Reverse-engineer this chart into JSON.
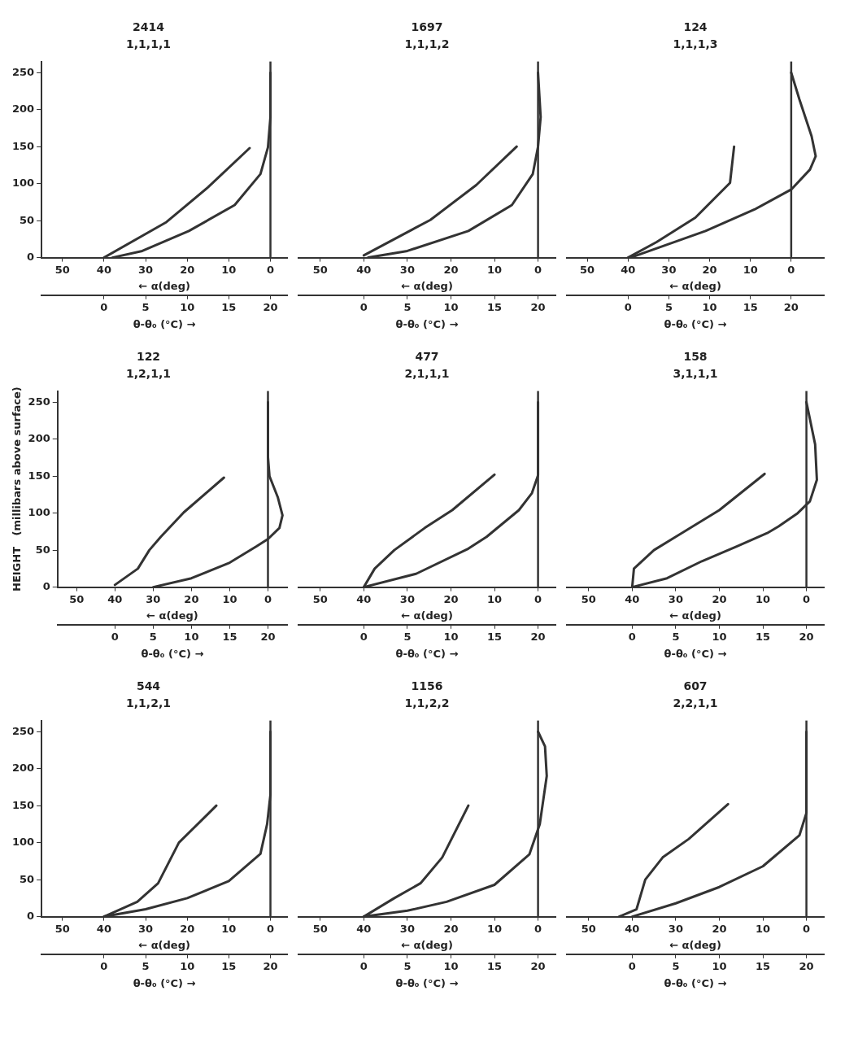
{
  "chart_data": [
    {
      "type": "line",
      "title": "2414",
      "subtitle": "1,1,1,1",
      "xlabel": "← α(deg)",
      "x2label": "θ-θ₀ (°C) →",
      "xlim": [
        55,
        -4
      ],
      "xticks": [
        50,
        40,
        30,
        20,
        10,
        0
      ],
      "x2lim": [
        -7.5,
        22
      ],
      "x2ticks": [
        0,
        5,
        10,
        15,
        20
      ],
      "ylim": [
        0,
        265
      ],
      "yticks": [
        0,
        50,
        100,
        150,
        200,
        250
      ],
      "ref_lines": [
        {
          "axis": "x",
          "value": 0,
          "color": "#333333"
        }
      ],
      "series": [
        {
          "color": "#333333",
          "x": [
            40,
            25,
            15,
            5
          ],
          "values": [
            0,
            48,
            95,
            148
          ]
        },
        {
          "color": "#333333",
          "axis": "x2",
          "x": [
            1,
            4.6,
            10.2,
            15.7,
            18.8,
            19.7,
            20,
            20
          ],
          "values": [
            0,
            9,
            36,
            71,
            113,
            149,
            190,
            250
          ]
        }
      ]
    },
    {
      "type": "line",
      "title": "1697",
      "subtitle": "1,1,1,2",
      "xlabel": "← α(deg)",
      "x2label": "θ-θ₀ (°C) →",
      "xlim": [
        55,
        -4
      ],
      "xticks": [
        50,
        40,
        30,
        20,
        10,
        0
      ],
      "x2lim": [
        -7.5,
        22
      ],
      "x2ticks": [
        0,
        5,
        10,
        15,
        20
      ],
      "ylim": [
        0,
        265
      ],
      "tick_labels": "x",
      "ref_lines": [
        {
          "axis": "x",
          "value": 0,
          "color": "#333333"
        }
      ],
      "series": [
        {
          "color": "#333333",
          "x": [
            40,
            24.7,
            14.2,
            4.9
          ],
          "values": [
            3,
            51,
            98,
            150
          ]
        },
        {
          "color": "#333333",
          "axis": "x2",
          "x": [
            0.5,
            5,
            12,
            17,
            19.4,
            20,
            20.3,
            20
          ],
          "values": [
            0,
            9,
            36,
            71,
            113,
            150,
            190,
            250
          ]
        }
      ]
    },
    {
      "type": "line",
      "title": "124",
      "subtitle": "1,1,1,3",
      "xlabel": "← α(deg)",
      "x2label": "θ-θ₀ (°C) →",
      "xlim": [
        55,
        -8
      ],
      "xticks": [
        50,
        40,
        30,
        20,
        10,
        0
      ],
      "x2lim": [
        -7.5,
        24
      ],
      "x2ticks": [
        0,
        5,
        10,
        15,
        20
      ],
      "ylim": [
        0,
        265
      ],
      "tick_labels": "x",
      "ref_lines": [
        {
          "axis": "x",
          "value": 0,
          "color": "#333333"
        }
      ],
      "series": [
        {
          "color": "#333333",
          "x": [
            40,
            33,
            23.5,
            15,
            14
          ],
          "values": [
            0,
            21,
            54,
            101,
            150
          ]
        },
        {
          "color": "#333333",
          "axis": "x2",
          "x": [
            0.3,
            9.5,
            15.5,
            20,
            22.3,
            23,
            22.5,
            21,
            20
          ],
          "values": [
            0,
            36,
            65,
            92,
            119,
            137,
            164,
            214,
            250
          ]
        }
      ]
    },
    {
      "type": "line",
      "title": "122",
      "subtitle": "1,2,1,1",
      "xlabel": "← α(deg)",
      "x2label": "θ-θ₀ (°C) →",
      "ylabel": "HEIGHT   (millibars above surface)",
      "xlim": [
        55,
        -5
      ],
      "xticks": [
        50,
        40,
        30,
        20,
        10,
        0
      ],
      "x2lim": [
        -7.5,
        22.5
      ],
      "x2ticks": [
        0,
        5,
        10,
        15,
        20
      ],
      "ylim": [
        0,
        265
      ],
      "yticks": [
        0,
        50,
        100,
        150,
        200,
        250
      ],
      "ref_lines": [
        {
          "axis": "x",
          "value": 0,
          "color": "#333333"
        }
      ],
      "series": [
        {
          "color": "#333333",
          "x": [
            40,
            34,
            31,
            28,
            22,
            11.5
          ],
          "values": [
            3,
            25,
            50,
            68,
            101,
            148
          ]
        },
        {
          "color": "#333333",
          "axis": "x2",
          "x": [
            5,
            10,
            15,
            18.5,
            20,
            21.5,
            21.9,
            21.3,
            20.2,
            20,
            20
          ],
          "values": [
            0,
            12,
            33,
            55,
            65,
            80,
            97,
            121,
            150,
            176,
            250
          ]
        }
      ]
    },
    {
      "type": "line",
      "title": "477",
      "subtitle": "2,1,1,1",
      "xlabel": "← α(deg)",
      "x2label": "θ-θ₀ (°C) →",
      "xlim": [
        55,
        -4
      ],
      "xticks": [
        50,
        40,
        30,
        20,
        10,
        0
      ],
      "x2lim": [
        -7.5,
        22
      ],
      "x2ticks": [
        0,
        5,
        10,
        15,
        20
      ],
      "ylim": [
        0,
        265
      ],
      "tick_labels": "x",
      "ref_lines": [
        {
          "axis": "x",
          "value": 0,
          "color": "#333333"
        }
      ],
      "series": [
        {
          "color": "#333333",
          "x": [
            40,
            37.5,
            33,
            26,
            19.7,
            10
          ],
          "values": [
            0,
            25,
            50,
            80,
            104,
            152
          ]
        },
        {
          "color": "#333333",
          "axis": "x2",
          "x": [
            0,
            6,
            12,
            14.1,
            17.8,
            19.3,
            20,
            20
          ],
          "values": [
            0,
            18,
            52,
            68,
            104,
            127,
            151,
            250
          ]
        }
      ]
    },
    {
      "type": "line",
      "title": "158",
      "subtitle": "3,1,1,1",
      "xlabel": "← α(deg)",
      "x2label": "θ-θ₀ (°C) →",
      "xlim": [
        55,
        -4
      ],
      "xticks": [
        50,
        40,
        30,
        20,
        10,
        0
      ],
      "x2lim": [
        -7.5,
        22
      ],
      "x2ticks": [
        0,
        5,
        10,
        15,
        20
      ],
      "ylim": [
        0,
        265
      ],
      "tick_labels": "x",
      "ref_lines": [
        {
          "axis": "x",
          "value": 0,
          "color": "#333333"
        }
      ],
      "series": [
        {
          "color": "#333333",
          "x": [
            40,
            39.6,
            35,
            30,
            20,
            9.6
          ],
          "values": [
            0,
            25,
            50,
            68,
            104,
            153
          ]
        },
        {
          "color": "#333333",
          "axis": "x2",
          "x": [
            0,
            4,
            8,
            12,
            15.5,
            16.8,
            19,
            20.4,
            21.2,
            21,
            20
          ],
          "values": [
            0,
            12,
            35,
            55,
            73,
            82,
            100,
            116,
            145,
            193,
            250
          ]
        }
      ]
    },
    {
      "type": "line",
      "title": "544",
      "subtitle": "1,1,2,1",
      "xlabel": "← α(deg)",
      "x2label": "θ-θ₀ (°C) →",
      "xlim": [
        55,
        -4
      ],
      "xticks": [
        50,
        40,
        30,
        20,
        10,
        0
      ],
      "x2lim": [
        -7.5,
        22
      ],
      "x2ticks": [
        0,
        5,
        10,
        15,
        20
      ],
      "ylim": [
        0,
        265
      ],
      "yticks": [
        0,
        50,
        100,
        150,
        200,
        250
      ],
      "ref_lines": [
        {
          "axis": "x",
          "value": 0,
          "color": "#333333"
        }
      ],
      "series": [
        {
          "color": "#333333",
          "x": [
            40,
            32,
            27,
            22,
            13
          ],
          "values": [
            0,
            20,
            45,
            100,
            150
          ]
        },
        {
          "color": "#333333",
          "axis": "x2",
          "x": [
            0,
            5,
            10,
            15,
            18.8,
            19.6,
            20,
            20
          ],
          "values": [
            0,
            10,
            25,
            48,
            85,
            125,
            165,
            250
          ]
        }
      ]
    },
    {
      "type": "line",
      "title": "1156",
      "subtitle": "1,1,2,2",
      "xlabel": "← α(deg)",
      "x2label": "θ-θ₀ (°C) →",
      "xlim": [
        55,
        -4
      ],
      "xticks": [
        50,
        40,
        30,
        20,
        10,
        0
      ],
      "x2lim": [
        -7.5,
        22
      ],
      "x2ticks": [
        0,
        5,
        10,
        15,
        20
      ],
      "ylim": [
        0,
        265
      ],
      "tick_labels": "x",
      "ref_lines": [
        {
          "axis": "x",
          "value": 0,
          "color": "#333333"
        }
      ],
      "series": [
        {
          "color": "#333333",
          "x": [
            40,
            33,
            27,
            22,
            16
          ],
          "values": [
            0,
            25,
            45,
            80,
            150
          ]
        },
        {
          "color": "#333333",
          "axis": "x2",
          "x": [
            0,
            5,
            9.5,
            15,
            19,
            20.2,
            21,
            20.8,
            20
          ],
          "values": [
            0,
            8,
            20,
            43,
            84,
            125,
            190,
            230,
            250
          ]
        }
      ]
    },
    {
      "type": "line",
      "title": "607",
      "subtitle": "2,2,1,1",
      "xlabel": "← α(deg)",
      "x2label": "θ-θ₀ (°C) →",
      "xlim": [
        55,
        -4
      ],
      "xticks": [
        50,
        40,
        30,
        20,
        10,
        0
      ],
      "x2lim": [
        -7.5,
        22
      ],
      "x2ticks": [
        0,
        5,
        10,
        15,
        20
      ],
      "ylim": [
        0,
        265
      ],
      "tick_labels": "x",
      "ref_lines": [
        {
          "axis": "x",
          "value": 0,
          "color": "#333333"
        }
      ],
      "series": [
        {
          "color": "#333333",
          "x": [
            43,
            39,
            37,
            33,
            27,
            18
          ],
          "values": [
            0,
            10,
            50,
            80,
            105,
            152
          ]
        },
        {
          "color": "#333333",
          "axis": "x2",
          "x": [
            0,
            5,
            10,
            15,
            19.2,
            20,
            20
          ],
          "values": [
            0,
            18,
            40,
            68,
            110,
            140,
            250
          ]
        }
      ]
    }
  ]
}
